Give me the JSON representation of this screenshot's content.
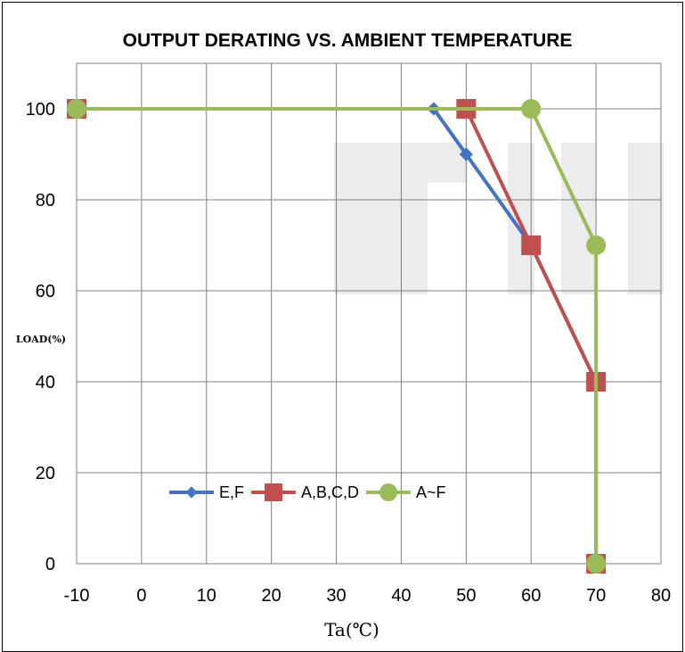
{
  "chart_data": {
    "type": "line",
    "title": "OUTPUT DERATING VS. AMBIENT TEMPERATURE",
    "xlabel": "Ta(℃)",
    "ylabel": "LOAD(%)",
    "xlim": [
      -10,
      80
    ],
    "ylim": [
      0,
      110
    ],
    "x_ticks": [
      -10,
      0,
      10,
      20,
      30,
      40,
      50,
      60,
      70,
      80
    ],
    "y_ticks": [
      0,
      20,
      40,
      60,
      80,
      100
    ],
    "grid": true,
    "legend_position": "lower-left",
    "series": [
      {
        "name": "E,F",
        "color": "#4472C4",
        "marker": "diamond",
        "points": [
          [
            -10,
            100
          ],
          [
            45,
            100
          ],
          [
            50,
            90
          ],
          [
            60,
            70
          ],
          [
            70,
            40
          ],
          [
            70,
            0
          ]
        ]
      },
      {
        "name": "A,B,C,D",
        "color": "#C0504D",
        "marker": "square",
        "points": [
          [
            -10,
            100
          ],
          [
            50,
            100
          ],
          [
            60,
            70
          ],
          [
            70,
            40
          ],
          [
            70,
            0
          ]
        ]
      },
      {
        "name": "A~F",
        "color": "#9BBB59",
        "marker": "circle",
        "points": [
          [
            -10,
            100
          ],
          [
            60,
            100
          ],
          [
            70,
            70
          ],
          [
            70,
            0
          ]
        ]
      }
    ]
  }
}
